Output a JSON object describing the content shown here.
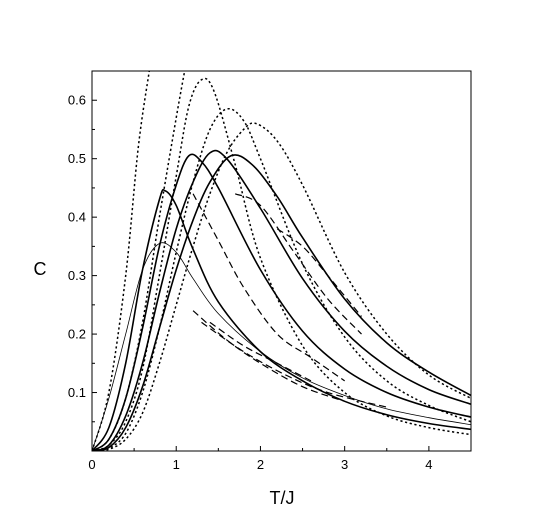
{
  "chart_data": {
    "type": "line",
    "title": "",
    "xlabel": "T/J",
    "ylabel": "C",
    "xlim": [
      0,
      4.5
    ],
    "ylim": [
      0,
      0.65
    ],
    "grid": false,
    "legend": "none",
    "x_ticks": [
      0,
      1,
      2,
      3,
      4
    ],
    "x_tick_labels": [
      "0",
      "1",
      "2",
      "3",
      "4"
    ],
    "y_ticks": [
      0.1,
      0.2,
      0.3,
      0.4,
      0.5,
      0.6
    ],
    "y_tick_labels": [
      "0.1",
      "0.2",
      "0.3",
      "0.4",
      "0.5",
      "0.6"
    ],
    "series": [
      {
        "style": "solid-thin",
        "points": [
          [
            0,
            0
          ],
          [
            0.2,
            0.09
          ],
          [
            0.4,
            0.2
          ],
          [
            0.6,
            0.31
          ],
          [
            0.8,
            0.355
          ],
          [
            1.0,
            0.34
          ],
          [
            1.2,
            0.295
          ],
          [
            1.5,
            0.235
          ],
          [
            2.0,
            0.17
          ],
          [
            2.5,
            0.125
          ],
          [
            3.0,
            0.095
          ],
          [
            3.5,
            0.072
          ],
          [
            4.0,
            0.057
          ],
          [
            4.5,
            0.045
          ]
        ]
      },
      {
        "style": "solid",
        "points": [
          [
            0,
            0
          ],
          [
            0.2,
            0.04
          ],
          [
            0.4,
            0.15
          ],
          [
            0.6,
            0.31
          ],
          [
            0.8,
            0.43
          ],
          [
            0.87,
            0.445
          ],
          [
            1.0,
            0.42
          ],
          [
            1.2,
            0.345
          ],
          [
            1.5,
            0.255
          ],
          [
            2.0,
            0.17
          ],
          [
            2.5,
            0.12
          ],
          [
            3.0,
            0.085
          ],
          [
            3.5,
            0.062
          ],
          [
            4.0,
            0.047
          ],
          [
            4.5,
            0.037
          ]
        ]
      },
      {
        "style": "solid",
        "points": [
          [
            0,
            0
          ],
          [
            0.2,
            0.02
          ],
          [
            0.4,
            0.09
          ],
          [
            0.6,
            0.21
          ],
          [
            0.8,
            0.35
          ],
          [
            1.0,
            0.455
          ],
          [
            1.15,
            0.505
          ],
          [
            1.3,
            0.495
          ],
          [
            1.5,
            0.45
          ],
          [
            2.0,
            0.31
          ],
          [
            2.5,
            0.205
          ],
          [
            3.0,
            0.14
          ],
          [
            3.5,
            0.1
          ],
          [
            4.0,
            0.075
          ],
          [
            4.5,
            0.058
          ]
        ]
      },
      {
        "style": "solid",
        "points": [
          [
            0,
            0
          ],
          [
            0.2,
            0.01
          ],
          [
            0.4,
            0.06
          ],
          [
            0.6,
            0.15
          ],
          [
            0.8,
            0.27
          ],
          [
            1.0,
            0.38
          ],
          [
            1.2,
            0.46
          ],
          [
            1.4,
            0.51
          ],
          [
            1.6,
            0.5
          ],
          [
            2.0,
            0.415
          ],
          [
            2.5,
            0.295
          ],
          [
            3.0,
            0.205
          ],
          [
            3.5,
            0.145
          ],
          [
            4.0,
            0.105
          ],
          [
            4.5,
            0.08
          ]
        ]
      },
      {
        "style": "solid",
        "points": [
          [
            0,
            0
          ],
          [
            0.2,
            0.006
          ],
          [
            0.4,
            0.04
          ],
          [
            0.6,
            0.11
          ],
          [
            0.8,
            0.21
          ],
          [
            1.0,
            0.31
          ],
          [
            1.2,
            0.395
          ],
          [
            1.4,
            0.46
          ],
          [
            1.65,
            0.505
          ],
          [
            1.9,
            0.49
          ],
          [
            2.2,
            0.435
          ],
          [
            2.5,
            0.365
          ],
          [
            3.0,
            0.26
          ],
          [
            3.5,
            0.185
          ],
          [
            4.0,
            0.135
          ],
          [
            4.5,
            0.095
          ]
        ]
      },
      {
        "style": "dotted",
        "points": [
          [
            0,
            0
          ],
          [
            0.2,
            0.1
          ],
          [
            0.4,
            0.3
          ],
          [
            0.55,
            0.52
          ],
          [
            0.68,
            0.65
          ]
        ]
      },
      {
        "style": "dotted",
        "points": [
          [
            0,
            0
          ],
          [
            0.2,
            0.02
          ],
          [
            0.4,
            0.09
          ],
          [
            0.6,
            0.22
          ],
          [
            0.8,
            0.4
          ],
          [
            1.0,
            0.57
          ],
          [
            1.1,
            0.65
          ]
        ]
      },
      {
        "style": "dotted",
        "points": [
          [
            0,
            0
          ],
          [
            0.2,
            0.01
          ],
          [
            0.4,
            0.05
          ],
          [
            0.6,
            0.14
          ],
          [
            0.8,
            0.3
          ],
          [
            1.0,
            0.47
          ],
          [
            1.15,
            0.59
          ],
          [
            1.3,
            0.635
          ],
          [
            1.45,
            0.615
          ],
          [
            1.7,
            0.49
          ],
          [
            2.0,
            0.33
          ],
          [
            2.5,
            0.18
          ],
          [
            3.0,
            0.1
          ],
          [
            3.5,
            0.06
          ],
          [
            4.0,
            0.04
          ],
          [
            4.5,
            0.028
          ]
        ]
      },
      {
        "style": "dotted",
        "points": [
          [
            0,
            0
          ],
          [
            0.2,
            0.005
          ],
          [
            0.4,
            0.03
          ],
          [
            0.6,
            0.1
          ],
          [
            0.8,
            0.21
          ],
          [
            1.0,
            0.34
          ],
          [
            1.2,
            0.46
          ],
          [
            1.4,
            0.55
          ],
          [
            1.6,
            0.585
          ],
          [
            1.8,
            0.565
          ],
          [
            2.0,
            0.5
          ],
          [
            2.5,
            0.32
          ],
          [
            3.0,
            0.195
          ],
          [
            3.5,
            0.12
          ],
          [
            4.0,
            0.078
          ],
          [
            4.5,
            0.05
          ]
        ]
      },
      {
        "style": "dotted",
        "points": [
          [
            0,
            0
          ],
          [
            0.2,
            0.003
          ],
          [
            0.4,
            0.02
          ],
          [
            0.6,
            0.065
          ],
          [
            0.8,
            0.15
          ],
          [
            1.0,
            0.25
          ],
          [
            1.2,
            0.35
          ],
          [
            1.4,
            0.44
          ],
          [
            1.6,
            0.51
          ],
          [
            1.8,
            0.55
          ],
          [
            1.95,
            0.56
          ],
          [
            2.2,
            0.53
          ],
          [
            2.5,
            0.455
          ],
          [
            3.0,
            0.305
          ],
          [
            3.5,
            0.2
          ],
          [
            4.0,
            0.13
          ],
          [
            4.5,
            0.09
          ]
        ]
      },
      {
        "style": "dashed",
        "points": [
          [
            1.4,
            0.22
          ],
          [
            1.8,
            0.18
          ],
          [
            2.2,
            0.15
          ],
          [
            2.6,
            0.12
          ]
        ]
      },
      {
        "style": "dashed",
        "points": [
          [
            1.2,
            0.44
          ],
          [
            1.5,
            0.36
          ],
          [
            1.8,
            0.28
          ],
          [
            2.2,
            0.2
          ],
          [
            2.6,
            0.16
          ],
          [
            3.0,
            0.12
          ]
        ]
      },
      {
        "style": "dashed",
        "points": [
          [
            1.7,
            0.44
          ],
          [
            2.0,
            0.42
          ],
          [
            2.4,
            0.34
          ],
          [
            2.8,
            0.26
          ],
          [
            3.2,
            0.2
          ]
        ]
      },
      {
        "style": "dashed",
        "points": [
          [
            2.2,
            0.38
          ],
          [
            2.5,
            0.35
          ],
          [
            2.8,
            0.3
          ],
          [
            3.2,
            0.23
          ]
        ]
      },
      {
        "style": "dashed",
        "points": [
          [
            1.2,
            0.24
          ],
          [
            1.6,
            0.19
          ],
          [
            2.0,
            0.15
          ],
          [
            2.5,
            0.11
          ],
          [
            3.0,
            0.085
          ]
        ]
      },
      {
        "style": "dashed",
        "points": [
          [
            1.3,
            0.22
          ],
          [
            1.8,
            0.17
          ],
          [
            2.3,
            0.13
          ],
          [
            2.8,
            0.1
          ],
          [
            3.5,
            0.075
          ]
        ]
      }
    ]
  }
}
